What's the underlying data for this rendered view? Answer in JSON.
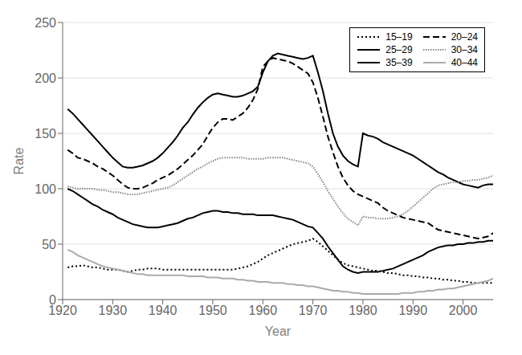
{
  "chart_data": {
    "type": "line",
    "xlabel": "Year",
    "ylabel": "Rate",
    "xlim": [
      1920,
      2006
    ],
    "ylim": [
      0,
      250
    ],
    "xticks": [
      1920,
      1930,
      1940,
      1950,
      1960,
      1970,
      1980,
      1990,
      2000
    ],
    "yticks": [
      0,
      50,
      100,
      150,
      200,
      250
    ],
    "grid": true,
    "legend": "upper right",
    "x": [
      1921,
      1922,
      1923,
      1924,
      1925,
      1926,
      1927,
      1928,
      1929,
      1930,
      1931,
      1932,
      1933,
      1934,
      1935,
      1936,
      1937,
      1938,
      1939,
      1940,
      1941,
      1942,
      1943,
      1944,
      1945,
      1946,
      1947,
      1948,
      1949,
      1950,
      1951,
      1952,
      1953,
      1954,
      1955,
      1956,
      1957,
      1958,
      1959,
      1960,
      1961,
      1962,
      1963,
      1964,
      1965,
      1966,
      1967,
      1968,
      1969,
      1970,
      1971,
      1972,
      1973,
      1974,
      1975,
      1976,
      1977,
      1978,
      1979,
      1980,
      1981,
      1982,
      1983,
      1984,
      1985,
      1986,
      1987,
      1988,
      1989,
      1990,
      1991,
      1992,
      1993,
      1994,
      1995,
      1996,
      1997,
      1998,
      1999,
      2000,
      2001,
      2002,
      2003,
      2004,
      2005,
      2006
    ],
    "series": [
      {
        "name": "15–19",
        "color": "#000000",
        "line_style": "dotted",
        "values": [
          29,
          30,
          30,
          31,
          30,
          29,
          29,
          28,
          27,
          27,
          27,
          26,
          25,
          26,
          27,
          27,
          28,
          28,
          28,
          27,
          27,
          27,
          27,
          27,
          27,
          27,
          27,
          27,
          27,
          27,
          27,
          27,
          27,
          27,
          28,
          29,
          30,
          32,
          34,
          37,
          40,
          42,
          44,
          46,
          48,
          50,
          51,
          52,
          53,
          55,
          52,
          48,
          44,
          40,
          36,
          33,
          31,
          30,
          29,
          28,
          27,
          26,
          26,
          25,
          24,
          24,
          23,
          22,
          22,
          21,
          21,
          20,
          20,
          19,
          19,
          18,
          18,
          17,
          17,
          16,
          16,
          15,
          15,
          15,
          15,
          15
        ]
      },
      {
        "name": "20–24",
        "color": "#000000",
        "line_style": "dashed",
        "values": [
          135,
          132,
          128,
          127,
          125,
          123,
          120,
          118,
          115,
          112,
          108,
          104,
          101,
          100,
          100,
          101,
          103,
          105,
          108,
          110,
          112,
          115,
          118,
          122,
          126,
          130,
          135,
          140,
          148,
          155,
          160,
          163,
          163,
          162,
          165,
          168,
          173,
          180,
          190,
          210,
          215,
          218,
          217,
          216,
          215,
          213,
          210,
          207,
          204,
          196,
          182,
          165,
          147,
          133,
          120,
          110,
          103,
          98,
          95,
          93,
          91,
          89,
          87,
          83,
          80,
          78,
          76,
          74,
          73,
          72,
          71,
          70,
          69,
          66,
          63,
          62,
          61,
          60,
          59,
          58,
          57,
          56,
          55,
          56,
          57,
          60
        ]
      },
      {
        "name": "25–29",
        "color": "#000000",
        "line_style": "solid",
        "values": [
          172,
          168,
          163,
          158,
          153,
          148,
          143,
          138,
          133,
          128,
          124,
          120,
          119,
          119,
          120,
          121,
          123,
          125,
          128,
          132,
          137,
          142,
          148,
          155,
          160,
          167,
          173,
          178,
          182,
          185,
          186,
          185,
          184,
          183,
          183,
          184,
          186,
          188,
          192,
          205,
          215,
          220,
          222,
          221,
          220,
          219,
          218,
          217,
          218,
          220,
          205,
          188,
          168,
          150,
          138,
          130,
          125,
          122,
          120,
          150,
          148,
          147,
          145,
          142,
          140,
          138,
          136,
          134,
          132,
          130,
          127,
          124,
          121,
          118,
          115,
          113,
          110,
          108,
          106,
          104,
          103,
          102,
          101,
          103,
          104,
          104
        ]
      },
      {
        "name": "30–34",
        "color": "#888888",
        "line_style": "densely-dotted",
        "values": [
          102,
          101,
          100,
          100,
          100,
          100,
          99,
          99,
          98,
          97,
          97,
          96,
          95,
          95,
          95,
          96,
          97,
          98,
          99,
          100,
          101,
          103,
          106,
          109,
          112,
          115,
          118,
          120,
          123,
          125,
          127,
          128,
          128,
          128,
          128,
          128,
          127,
          127,
          127,
          127,
          128,
          128,
          128,
          128,
          127,
          126,
          125,
          124,
          123,
          120,
          113,
          106,
          98,
          91,
          84,
          78,
          73,
          70,
          67,
          75,
          74,
          74,
          73,
          73,
          73,
          74,
          75,
          77,
          80,
          84,
          88,
          92,
          96,
          100,
          103,
          104,
          105,
          106,
          106,
          107,
          107,
          108,
          108,
          109,
          110,
          112
        ]
      },
      {
        "name": "35–39",
        "color": "#000000",
        "line_style": "solid",
        "values": [
          100,
          98,
          95,
          92,
          89,
          86,
          84,
          81,
          79,
          77,
          74,
          72,
          70,
          68,
          67,
          66,
          65,
          65,
          65,
          66,
          67,
          68,
          69,
          71,
          73,
          74,
          76,
          78,
          79,
          80,
          80,
          79,
          79,
          78,
          78,
          77,
          77,
          77,
          76,
          76,
          76,
          76,
          75,
          74,
          73,
          72,
          70,
          68,
          66,
          65,
          60,
          55,
          48,
          42,
          36,
          30,
          27,
          25,
          24,
          25,
          25,
          25,
          25,
          26,
          27,
          28,
          30,
          32,
          34,
          36,
          38,
          40,
          43,
          45,
          47,
          48,
          49,
          49,
          50,
          50,
          51,
          51,
          52,
          52,
          53,
          53
        ]
      },
      {
        "name": "40–44",
        "color": "#aaaaaa",
        "line_style": "solid",
        "values": [
          45,
          43,
          40,
          38,
          36,
          34,
          32,
          30,
          29,
          28,
          27,
          26,
          25,
          24,
          23,
          23,
          22,
          22,
          22,
          22,
          22,
          22,
          22,
          22,
          21,
          21,
          21,
          21,
          20,
          20,
          20,
          19,
          19,
          19,
          18,
          18,
          17,
          17,
          16,
          16,
          16,
          15,
          15,
          15,
          14,
          14,
          13,
          13,
          12,
          12,
          11,
          10,
          9,
          8,
          8,
          7,
          7,
          6,
          6,
          5,
          5,
          5,
          5,
          5,
          5,
          5,
          5,
          6,
          6,
          6,
          7,
          7,
          8,
          8,
          9,
          9,
          10,
          10,
          11,
          12,
          13,
          14,
          15,
          16,
          17,
          19
        ]
      }
    ]
  }
}
